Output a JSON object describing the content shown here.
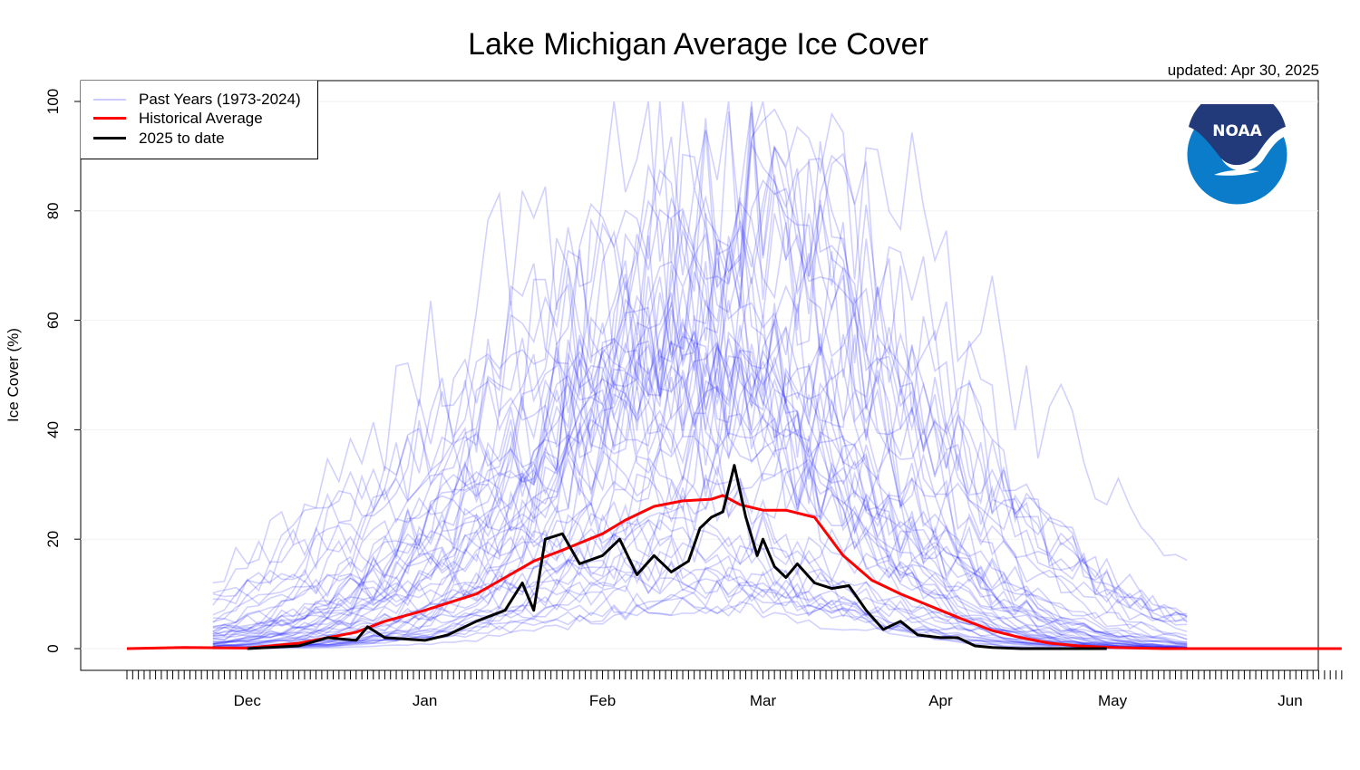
{
  "chart_data": {
    "type": "line",
    "title": "Lake Michigan Average Ice Cover",
    "subtitle": "updated: Apr 30, 2025",
    "xlabel": "",
    "ylabel": "Ice Cover (%)",
    "ylim": [
      0,
      100
    ],
    "yticks": [
      0,
      20,
      40,
      60,
      80,
      100
    ],
    "x_tick_labels": [
      "Dec",
      "Jan",
      "Feb",
      "Mar",
      "Apr",
      "May",
      "Jun"
    ],
    "x_start": "Nov 10",
    "x_end": "Jun 10",
    "grid": true,
    "legend_position": "top-left",
    "legend": [
      "Past Years (1973-2024)",
      "Historical Average",
      "2025 to date"
    ],
    "colors": {
      "past": "#0000ff",
      "average": "#ff0000",
      "current": "#000000"
    },
    "series": [
      {
        "name": "Historical Average",
        "x": [
          "Nov 10",
          "Nov 20",
          "Dec 1",
          "Dec 10",
          "Dec 20",
          "Dec 25",
          "Jan 1",
          "Jan 10",
          "Jan 15",
          "Jan 20",
          "Jan 25",
          "Feb 1",
          "Feb 5",
          "Feb 10",
          "Feb 15",
          "Feb 20",
          "Feb 22",
          "Feb 25",
          "Mar 1",
          "Mar 5",
          "Mar 10",
          "Mar 15",
          "Mar 20",
          "Mar 25",
          "Apr 1",
          "Apr 5",
          "Apr 10",
          "Apr 15",
          "Apr 20",
          "Apr 25",
          "May 1",
          "May 10",
          "May 20",
          "Jun 1",
          "Jun 10"
        ],
        "values": [
          0,
          0.2,
          0.1,
          1,
          3,
          5,
          7,
          10,
          13,
          16,
          18,
          21,
          23.5,
          26,
          27,
          27.3,
          28,
          26.3,
          25.3,
          25.3,
          24,
          17,
          12.5,
          10,
          7,
          5.3,
          3.3,
          2,
          1,
          0.5,
          0.2,
          0,
          0,
          0,
          0
        ]
      },
      {
        "name": "2025 to date",
        "x": [
          "Dec 1",
          "Dec 10",
          "Dec 15",
          "Dec 20",
          "Dec 22",
          "Dec 25",
          "Jan 1",
          "Jan 5",
          "Jan 10",
          "Jan 15",
          "Jan 18",
          "Jan 20",
          "Jan 22",
          "Jan 25",
          "Jan 28",
          "Feb 1",
          "Feb 4",
          "Feb 7",
          "Feb 10",
          "Feb 13",
          "Feb 16",
          "Feb 18",
          "Feb 20",
          "Feb 22",
          "Feb 24",
          "Feb 26",
          "Feb 28",
          "Mar 1",
          "Mar 3",
          "Mar 5",
          "Mar 7",
          "Mar 10",
          "Mar 13",
          "Mar 16",
          "Mar 19",
          "Mar 22",
          "Mar 25",
          "Mar 28",
          "Apr 1",
          "Apr 4",
          "Apr 7",
          "Apr 10",
          "Apr 15",
          "Apr 20",
          "Apr 25",
          "Apr 30"
        ],
        "values": [
          0,
          0.5,
          2,
          1.5,
          4,
          2,
          1.5,
          2.5,
          5,
          7,
          12,
          7,
          20,
          21,
          15.5,
          17,
          20,
          13.5,
          17,
          14,
          16,
          22,
          24,
          25,
          33.5,
          24,
          17,
          20,
          15,
          13,
          15.5,
          12,
          11,
          11.5,
          7,
          3.5,
          5,
          2.5,
          2,
          2,
          0.5,
          0.2,
          0,
          0,
          0,
          0
        ]
      }
    ]
  },
  "logo": {
    "text": "NOAA"
  }
}
